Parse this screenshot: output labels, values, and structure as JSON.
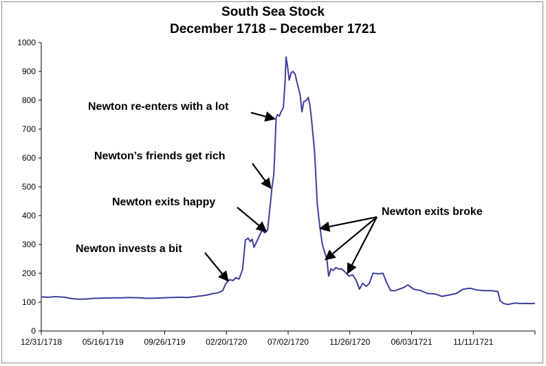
{
  "chart_data": {
    "type": "line",
    "title": "South Sea Stock",
    "subtitle": "December 1718 – December 1721",
    "xlabel": "",
    "ylabel": "",
    "ylim": [
      0,
      1000
    ],
    "y_ticks": [
      0,
      100,
      200,
      300,
      400,
      500,
      600,
      700,
      800,
      900,
      1000
    ],
    "x_tick_labels": [
      "12/31/1718",
      "05/16/1719",
      "09/26/1719",
      "02/20/1720",
      "07/02/1720",
      "11/26/1720",
      "06/03/1721",
      "11/11/1721"
    ],
    "grid": false,
    "legend": "none",
    "line_color": "#3c3c9c",
    "series": [
      {
        "values": [
          [
            "1718-12-31",
            118
          ],
          [
            "1719-01-15",
            117
          ],
          [
            "1719-02-01",
            119
          ],
          [
            "1719-02-20",
            117
          ],
          [
            "1719-03-10",
            112
          ],
          [
            "1719-03-25",
            110
          ],
          [
            "1719-04-10",
            111
          ],
          [
            "1719-04-25",
            113
          ],
          [
            "1719-05-16",
            114
          ],
          [
            "1719-06-05",
            115
          ],
          [
            "1719-06-25",
            115
          ],
          [
            "1719-07-15",
            116
          ],
          [
            "1719-08-05",
            115
          ],
          [
            "1719-08-25",
            113
          ],
          [
            "1719-09-10",
            114
          ],
          [
            "1719-09-26",
            115
          ],
          [
            "1719-10-15",
            116
          ],
          [
            "1719-11-01",
            117
          ],
          [
            "1719-11-20",
            116
          ],
          [
            "1719-12-10",
            120
          ],
          [
            "1719-12-31",
            124
          ],
          [
            "1720-01-15",
            130
          ],
          [
            "1720-01-25",
            132
          ],
          [
            "1720-02-05",
            140
          ],
          [
            "1720-02-12",
            165
          ],
          [
            "1720-02-20",
            178
          ],
          [
            "1720-02-28",
            175
          ],
          [
            "1720-03-05",
            185
          ],
          [
            "1720-03-12",
            180
          ],
          [
            "1720-03-20",
            215
          ],
          [
            "1720-03-26",
            315
          ],
          [
            "1720-04-01",
            322
          ],
          [
            "1720-04-06",
            310
          ],
          [
            "1720-04-10",
            318
          ],
          [
            "1720-04-14",
            290
          ],
          [
            "1720-04-20",
            310
          ],
          [
            "1720-04-26",
            330
          ],
          [
            "1720-05-02",
            350
          ],
          [
            "1720-05-08",
            340
          ],
          [
            "1720-05-14",
            350
          ],
          [
            "1720-05-19",
            420
          ],
          [
            "1720-05-24",
            500
          ],
          [
            "1720-05-28",
            545
          ],
          [
            "1720-06-02",
            740
          ],
          [
            "1720-06-05",
            750
          ],
          [
            "1720-06-09",
            745
          ],
          [
            "1720-06-13",
            760
          ],
          [
            "1720-06-18",
            775
          ],
          [
            "1720-06-22",
            870
          ],
          [
            "1720-06-24",
            950
          ],
          [
            "1720-06-27",
            920
          ],
          [
            "1720-07-01",
            870
          ],
          [
            "1720-07-05",
            895
          ],
          [
            "1720-07-09",
            900
          ],
          [
            "1720-07-14",
            890
          ],
          [
            "1720-07-20",
            850
          ],
          [
            "1720-07-25",
            820
          ],
          [
            "1720-07-29",
            760
          ],
          [
            "1720-08-02",
            795
          ],
          [
            "1720-08-08",
            800
          ],
          [
            "1720-08-12",
            810
          ],
          [
            "1720-08-16",
            780
          ],
          [
            "1720-08-20",
            720
          ],
          [
            "1720-08-26",
            620
          ],
          [
            "1720-09-01",
            440
          ],
          [
            "1720-09-06",
            370
          ],
          [
            "1720-09-12",
            300
          ],
          [
            "1720-09-18",
            270
          ],
          [
            "1720-09-22",
            250
          ],
          [
            "1720-09-26",
            190
          ],
          [
            "1720-10-01",
            215
          ],
          [
            "1720-10-06",
            210
          ],
          [
            "1720-10-12",
            220
          ],
          [
            "1720-10-18",
            215
          ],
          [
            "1720-10-25",
            215
          ],
          [
            "1720-11-01",
            205
          ],
          [
            "1720-11-10",
            190
          ],
          [
            "1720-11-18",
            195
          ],
          [
            "1720-11-26",
            175
          ],
          [
            "1720-12-03",
            145
          ],
          [
            "1720-12-10",
            165
          ],
          [
            "1720-12-18",
            155
          ],
          [
            "1720-12-25",
            165
          ],
          [
            "1721-01-02",
            200
          ],
          [
            "1721-01-15",
            198
          ],
          [
            "1721-01-24",
            200
          ],
          [
            "1721-02-02",
            165
          ],
          [
            "1721-02-10",
            140
          ],
          [
            "1721-02-20",
            140
          ],
          [
            "1721-03-01",
            145
          ],
          [
            "1721-03-10",
            150
          ],
          [
            "1721-03-20",
            160
          ],
          [
            "1721-04-02",
            145
          ],
          [
            "1721-04-18",
            140
          ],
          [
            "1721-05-02",
            130
          ],
          [
            "1721-05-20",
            128
          ],
          [
            "1721-06-03",
            120
          ],
          [
            "1721-06-20",
            125
          ],
          [
            "1721-07-05",
            130
          ],
          [
            "1721-07-20",
            145
          ],
          [
            "1721-08-05",
            148
          ],
          [
            "1721-08-20",
            142
          ],
          [
            "1721-09-05",
            140
          ],
          [
            "1721-09-20",
            140
          ],
          [
            "1721-10-05",
            137
          ],
          [
            "1721-10-10",
            105
          ],
          [
            "1721-10-18",
            95
          ],
          [
            "1721-10-28",
            92
          ],
          [
            "1721-11-11",
            97
          ],
          [
            "1721-11-25",
            95
          ],
          [
            "1721-12-05",
            96
          ],
          [
            "1721-12-15",
            95
          ],
          [
            "1721-12-26",
            96
          ]
        ]
      }
    ],
    "annotations": [
      {
        "text": "Newton invests a bit",
        "arrow_targets": [
          [
            "1720-02-20",
            178
          ]
        ]
      },
      {
        "text": "Newton exits happy",
        "arrow_targets": [
          [
            "1720-05-14",
            350
          ]
        ]
      },
      {
        "text": "Newton’s friends get rich",
        "arrow_targets": [
          [
            "1720-05-24",
            500
          ]
        ]
      },
      {
        "text": "Newton re-enters with a lot",
        "arrow_targets": [
          [
            "1720-06-02",
            740
          ]
        ]
      },
      {
        "text": "Newton exits broke",
        "arrow_targets": [
          [
            "1720-09-10",
            360
          ],
          [
            "1720-09-22",
            252
          ],
          [
            "1720-11-10",
            205
          ]
        ]
      }
    ]
  }
}
